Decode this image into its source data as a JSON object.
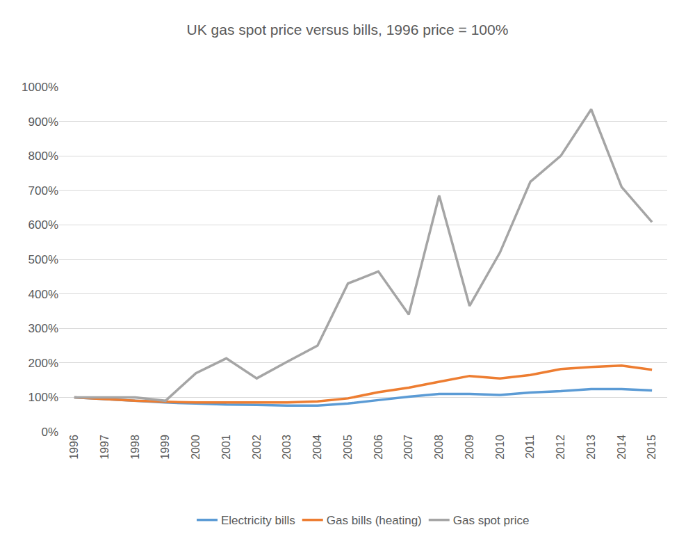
{
  "chart_data": {
    "type": "line",
    "title": "UK gas spot price versus bills, 1996 price = 100%",
    "categories": [
      "1996",
      "1997",
      "1998",
      "1999",
      "2000",
      "2001",
      "2002",
      "2003",
      "2004",
      "2005",
      "2006",
      "2007",
      "2008",
      "2009",
      "2010",
      "2011",
      "2012",
      "2013",
      "2014",
      "2015"
    ],
    "series": [
      {
        "name": "Electricity bills",
        "color": "#5b9bd5",
        "values": [
          100,
          95,
          90,
          85,
          82,
          79,
          78,
          76,
          76,
          82,
          92,
          102,
          110,
          110,
          107,
          114,
          118,
          124,
          124,
          120
        ]
      },
      {
        "name": "Gas bills (heating)",
        "color": "#ed7d31",
        "values": [
          100,
          95,
          90,
          87,
          85,
          85,
          85,
          85,
          88,
          97,
          115,
          128,
          145,
          162,
          155,
          165,
          182,
          188,
          192,
          180
        ]
      },
      {
        "name": "Gas spot price",
        "color": "#a5a5a5",
        "values": [
          100,
          100,
          100,
          90,
          170,
          213,
          155,
          203,
          250,
          430,
          465,
          340,
          685,
          365,
          520,
          725,
          800,
          935,
          710,
          608
        ]
      }
    ],
    "ylim": [
      0,
      1000
    ],
    "yticks": [
      {
        "value": 0,
        "label": "0%"
      },
      {
        "value": 100,
        "label": "100%"
      },
      {
        "value": 200,
        "label": "200%"
      },
      {
        "value": 300,
        "label": "300%"
      },
      {
        "value": 400,
        "label": "400%"
      },
      {
        "value": 500,
        "label": "500%"
      },
      {
        "value": 600,
        "label": "600%"
      },
      {
        "value": 700,
        "label": "700%"
      },
      {
        "value": 800,
        "label": "800%"
      },
      {
        "value": 900,
        "label": "900%"
      },
      {
        "value": 1000,
        "label": "1000%"
      }
    ],
    "grid": true,
    "legend": "bottom"
  }
}
